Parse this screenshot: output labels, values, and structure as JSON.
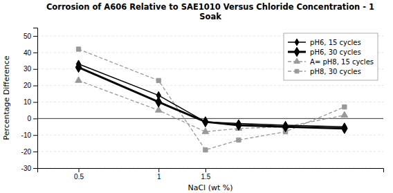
{
  "chart_data": {
    "type": "line",
    "title": "Corrosion of A606 Relative to SAE1010 Versus Chloride Concentration - 1\nSoak",
    "x_label": "NaCl (wt %)",
    "y_label": "Percentage Difference",
    "log": "x",
    "x": [
      0.5,
      1.0,
      1.5,
      2.0,
      3.0,
      5.0
    ],
    "xlim": [
      0.35,
      7.0
    ],
    "xticks": [
      0.5,
      1,
      1.5
    ],
    "ylim": [
      -30,
      55
    ],
    "yticks": [
      -30,
      -20,
      -10,
      0,
      10,
      20,
      30,
      40,
      50
    ],
    "grid": true,
    "legend": "upper right",
    "series": [
      {
        "name": "pH6, 15 cycles",
        "color": "#000000",
        "marker": "diamond",
        "line_style": "solid",
        "values": [
          33,
          14,
          -2,
          -3,
          -4,
          -5
        ]
      },
      {
        "name": "pH6, 30 cycles",
        "color": "#000000",
        "marker": "diamond",
        "line_style": "solid",
        "values": [
          31,
          10,
          -2,
          -4,
          -5,
          -6
        ]
      },
      {
        "name": "A=  pH8, 15 cycles",
        "color": "#999999",
        "marker": "triangle",
        "line_style": "dashed",
        "values": [
          23,
          5,
          -8,
          -6,
          -5,
          2
        ]
      },
      {
        "name": "pH8, 30 cycles",
        "color": "#999999",
        "marker": "square",
        "line_style": "dashed",
        "values": [
          42,
          23,
          -19,
          -13,
          -8,
          7
        ]
      }
    ]
  }
}
